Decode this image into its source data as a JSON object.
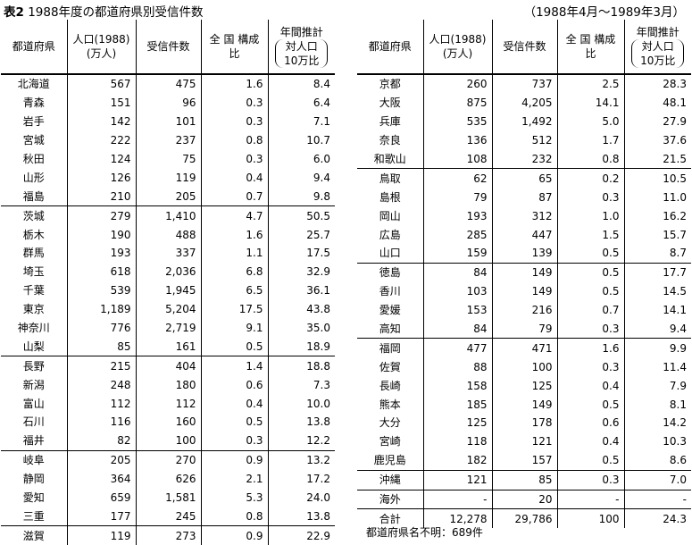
{
  "title": {
    "label": "表2",
    "text": "1988年度の都道府県別受信件数"
  },
  "period": "（1988年4月～1989年3月）",
  "headers": {
    "pref": "都道府県",
    "pop_line1": "人口(1988)",
    "pop_line2": "(万人)",
    "cases": "受信件数",
    "share_line1": "全 国 構成",
    "share_line2": "比",
    "ratio_line1": "年間推計",
    "ratio_line2": "対人口",
    "ratio_line3": "10万比"
  },
  "left_rows": [
    {
      "pref": "北海道",
      "pop": "567",
      "cases": "475",
      "share": "1.6",
      "ratio": "8.4"
    },
    {
      "pref": "青森",
      "pop": "151",
      "cases": "96",
      "share": "0.3",
      "ratio": "6.4"
    },
    {
      "pref": "岩手",
      "pop": "142",
      "cases": "101",
      "share": "0.3",
      "ratio": "7.1"
    },
    {
      "pref": "宮城",
      "pop": "222",
      "cases": "237",
      "share": "0.8",
      "ratio": "10.7"
    },
    {
      "pref": "秋田",
      "pop": "124",
      "cases": "75",
      "share": "0.3",
      "ratio": "6.0"
    },
    {
      "pref": "山形",
      "pop": "126",
      "cases": "119",
      "share": "0.4",
      "ratio": "9.4"
    },
    {
      "pref": "福島",
      "pop": "210",
      "cases": "205",
      "share": "0.7",
      "ratio": "9.8"
    },
    {
      "pref": "茨城",
      "pop": "279",
      "cases": "1,410",
      "share": "4.7",
      "ratio": "50.5"
    },
    {
      "pref": "栃木",
      "pop": "190",
      "cases": "488",
      "share": "1.6",
      "ratio": "25.7"
    },
    {
      "pref": "群馬",
      "pop": "193",
      "cases": "337",
      "share": "1.1",
      "ratio": "17.5"
    },
    {
      "pref": "埼玉",
      "pop": "618",
      "cases": "2,036",
      "share": "6.8",
      "ratio": "32.9"
    },
    {
      "pref": "千葉",
      "pop": "539",
      "cases": "1,945",
      "share": "6.5",
      "ratio": "36.1"
    },
    {
      "pref": "東京",
      "pop": "1,189",
      "cases": "5,204",
      "share": "17.5",
      "ratio": "43.8"
    },
    {
      "pref": "神奈川",
      "pop": "776",
      "cases": "2,719",
      "share": "9.1",
      "ratio": "35.0"
    },
    {
      "pref": "山梨",
      "pop": "85",
      "cases": "161",
      "share": "0.5",
      "ratio": "18.9"
    },
    {
      "pref": "長野",
      "pop": "215",
      "cases": "404",
      "share": "1.4",
      "ratio": "18.8"
    },
    {
      "pref": "新潟",
      "pop": "248",
      "cases": "180",
      "share": "0.6",
      "ratio": "7.3"
    },
    {
      "pref": "富山",
      "pop": "112",
      "cases": "112",
      "share": "0.4",
      "ratio": "10.0"
    },
    {
      "pref": "石川",
      "pop": "116",
      "cases": "160",
      "share": "0.5",
      "ratio": "13.8"
    },
    {
      "pref": "福井",
      "pop": "82",
      "cases": "100",
      "share": "0.3",
      "ratio": "12.2"
    },
    {
      "pref": "岐阜",
      "pop": "205",
      "cases": "270",
      "share": "0.9",
      "ratio": "13.2"
    },
    {
      "pref": "静岡",
      "pop": "364",
      "cases": "626",
      "share": "2.1",
      "ratio": "17.2"
    },
    {
      "pref": "愛知",
      "pop": "659",
      "cases": "1,581",
      "share": "5.3",
      "ratio": "24.0"
    },
    {
      "pref": "三重",
      "pop": "177",
      "cases": "245",
      "share": "0.8",
      "ratio": "13.8"
    },
    {
      "pref": "滋賀",
      "pop": "119",
      "cases": "273",
      "share": "0.9",
      "ratio": "22.9"
    }
  ],
  "right_rows": [
    {
      "pref": "京都",
      "pop": "260",
      "cases": "737",
      "share": "2.5",
      "ratio": "28.3"
    },
    {
      "pref": "大阪",
      "pop": "875",
      "cases": "4,205",
      "share": "14.1",
      "ratio": "48.1"
    },
    {
      "pref": "兵庫",
      "pop": "535",
      "cases": "1,492",
      "share": "5.0",
      "ratio": "27.9"
    },
    {
      "pref": "奈良",
      "pop": "136",
      "cases": "512",
      "share": "1.7",
      "ratio": "37.6"
    },
    {
      "pref": "和歌山",
      "pop": "108",
      "cases": "232",
      "share": "0.8",
      "ratio": "21.5"
    },
    {
      "pref": "鳥取",
      "pop": "62",
      "cases": "65",
      "share": "0.2",
      "ratio": "10.5"
    },
    {
      "pref": "島根",
      "pop": "79",
      "cases": "87",
      "share": "0.3",
      "ratio": "11.0"
    },
    {
      "pref": "岡山",
      "pop": "193",
      "cases": "312",
      "share": "1.0",
      "ratio": "16.2"
    },
    {
      "pref": "広島",
      "pop": "285",
      "cases": "447",
      "share": "1.5",
      "ratio": "15.7"
    },
    {
      "pref": "山口",
      "pop": "159",
      "cases": "139",
      "share": "0.5",
      "ratio": "8.7"
    },
    {
      "pref": "徳島",
      "pop": "84",
      "cases": "149",
      "share": "0.5",
      "ratio": "17.7"
    },
    {
      "pref": "香川",
      "pop": "103",
      "cases": "149",
      "share": "0.5",
      "ratio": "14.5"
    },
    {
      "pref": "愛媛",
      "pop": "153",
      "cases": "216",
      "share": "0.7",
      "ratio": "14.1"
    },
    {
      "pref": "高知",
      "pop": "84",
      "cases": "79",
      "share": "0.3",
      "ratio": "9.4"
    },
    {
      "pref": "福岡",
      "pop": "477",
      "cases": "471",
      "share": "1.6",
      "ratio": "9.9"
    },
    {
      "pref": "佐賀",
      "pop": "88",
      "cases": "100",
      "share": "0.3",
      "ratio": "11.4"
    },
    {
      "pref": "長崎",
      "pop": "158",
      "cases": "125",
      "share": "0.4",
      "ratio": "7.9"
    },
    {
      "pref": "熊本",
      "pop": "185",
      "cases": "149",
      "share": "0.5",
      "ratio": "8.1"
    },
    {
      "pref": "大分",
      "pop": "125",
      "cases": "178",
      "share": "0.6",
      "ratio": "14.2"
    },
    {
      "pref": "宮崎",
      "pop": "118",
      "cases": "121",
      "share": "0.4",
      "ratio": "10.3"
    },
    {
      "pref": "鹿児島",
      "pop": "182",
      "cases": "157",
      "share": "0.5",
      "ratio": "8.6"
    },
    {
      "pref": "沖縄",
      "pop": "121",
      "cases": "85",
      "share": "0.3",
      "ratio": "7.0"
    },
    {
      "pref": "海外",
      "pop": "-",
      "cases": "20",
      "share": "-",
      "ratio": "-"
    },
    {
      "pref": "合計",
      "pop": "12,278",
      "cases": "29,786",
      "share": "100",
      "ratio": "24.3"
    }
  ],
  "note": "都道府県名不明：689件"
}
